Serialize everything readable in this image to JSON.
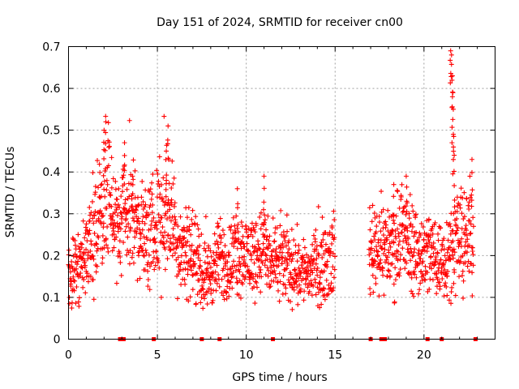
{
  "chart_data": {
    "type": "scatter",
    "title": "Day 151 of 2024, SRMTID for receiver cn00",
    "xlabel": "GPS time / hours",
    "ylabel": "SRMTID / TECUs",
    "xlim": [
      0,
      24
    ],
    "ylim": [
      0,
      0.7
    ],
    "xticks": [
      0,
      5,
      10,
      15,
      20
    ],
    "yticks": [
      0,
      0.1,
      0.2,
      0.3,
      0.4,
      0.5,
      0.6,
      0.7
    ],
    "xtick_labels": [
      "0",
      "5",
      "10",
      "15",
      "20"
    ],
    "ytick_labels": [
      "0",
      "0.1",
      "0.2",
      "0.3",
      "0.4",
      "0.5",
      "0.6",
      "0.7"
    ],
    "grid": true,
    "marker": "+",
    "color": "#ff0000",
    "series": [
      {
        "name": "SRMTID",
        "trend": [
          [
            0.0,
            0.16
          ],
          [
            0.5,
            0.18
          ],
          [
            1.0,
            0.2
          ],
          [
            1.5,
            0.27
          ],
          [
            2.0,
            0.33
          ],
          [
            2.3,
            0.36
          ],
          [
            2.8,
            0.24
          ],
          [
            3.3,
            0.31
          ],
          [
            3.8,
            0.29
          ],
          [
            4.3,
            0.24
          ],
          [
            4.8,
            0.26
          ],
          [
            5.3,
            0.3
          ],
          [
            5.7,
            0.31
          ],
          [
            6.2,
            0.22
          ],
          [
            6.8,
            0.22
          ],
          [
            7.2,
            0.18
          ],
          [
            7.5,
            0.15
          ],
          [
            8.0,
            0.16
          ],
          [
            8.5,
            0.19
          ],
          [
            9.0,
            0.18
          ],
          [
            9.5,
            0.21
          ],
          [
            10.0,
            0.2
          ],
          [
            10.5,
            0.2
          ],
          [
            11.0,
            0.22
          ],
          [
            11.5,
            0.17
          ],
          [
            12.0,
            0.19
          ],
          [
            12.5,
            0.17
          ],
          [
            13.0,
            0.17
          ],
          [
            13.5,
            0.16
          ],
          [
            14.0,
            0.17
          ],
          [
            14.5,
            0.19
          ],
          [
            14.9,
            0.2
          ],
          [
            16.9,
            0.21
          ],
          [
            17.3,
            0.23
          ],
          [
            17.8,
            0.22
          ],
          [
            18.3,
            0.22
          ],
          [
            18.8,
            0.24
          ],
          [
            19.3,
            0.22
          ],
          [
            19.8,
            0.2
          ],
          [
            20.3,
            0.21
          ],
          [
            20.8,
            0.19
          ],
          [
            21.3,
            0.2
          ],
          [
            21.7,
            0.24
          ],
          [
            22.2,
            0.23
          ],
          [
            22.6,
            0.25
          ],
          [
            22.8,
            0.24
          ]
        ],
        "spikes": [
          [
            2.0,
            0.5
          ],
          [
            2.1,
            0.52
          ],
          [
            3.15,
            0.47
          ],
          [
            3.6,
            0.39
          ],
          [
            5.6,
            0.51
          ],
          [
            5.5,
            0.45
          ],
          [
            9.5,
            0.36
          ],
          [
            11.0,
            0.39
          ],
          [
            18.3,
            0.37
          ],
          [
            19.0,
            0.39
          ],
          [
            21.5,
            0.69
          ],
          [
            21.55,
            0.68
          ],
          [
            21.6,
            0.63
          ],
          [
            21.6,
            0.58
          ],
          [
            21.65,
            0.55
          ],
          [
            21.65,
            0.49
          ],
          [
            21.7,
            0.44
          ],
          [
            22.7,
            0.43
          ]
        ],
        "data_gap": [
          15.0,
          16.9
        ]
      }
    ],
    "baseline_markers_x": [
      2.9,
      3.1,
      4.8,
      7.5,
      8.5,
      11.5,
      17.0,
      17.6,
      17.8,
      20.2,
      21.0,
      22.9
    ]
  }
}
